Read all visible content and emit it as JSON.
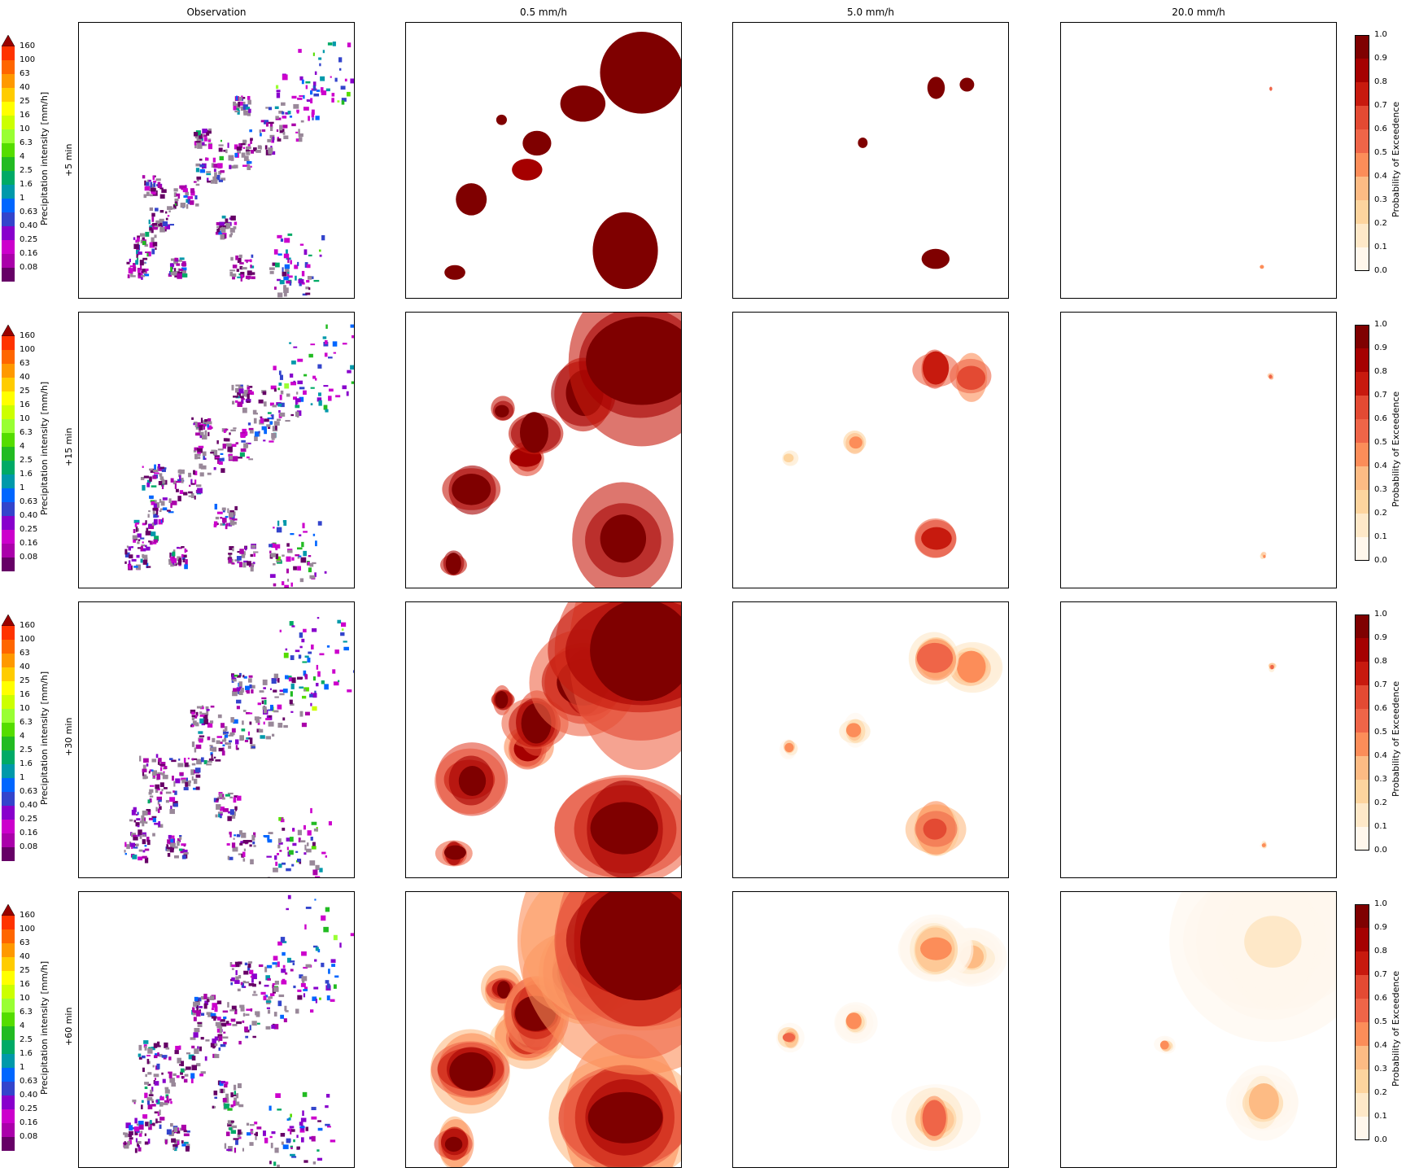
{
  "columns": [
    "Observation",
    "0.5 mm/h",
    "5.0 mm/h",
    "20.0 mm/h"
  ],
  "rows": [
    "+5 min",
    "+15 min",
    "+30 min",
    "+60 min"
  ],
  "precip_colorbar": {
    "label": "Precipitation intensity [mm/h]",
    "ticks": [
      "160",
      "100",
      "63",
      "40",
      "25",
      "16",
      "10",
      "6.3",
      "4",
      "2.5",
      "1.6",
      "1",
      "0.63",
      "0.40",
      "0.25",
      "0.16",
      "0.08"
    ],
    "colors": [
      "#cc0000",
      "#ff3300",
      "#ff6600",
      "#ff9900",
      "#ffcc00",
      "#ffff00",
      "#ccff00",
      "#99ff33",
      "#55dd00",
      "#22bb22",
      "#00aa66",
      "#0099aa",
      "#0066ff",
      "#3344cc",
      "#8800cc",
      "#cc00cc",
      "#aa00aa",
      "#660066",
      "#998899"
    ],
    "extend_color": "#990000"
  },
  "prob_colorbar": {
    "label": "Probability of Exceedence",
    "ticks": [
      "1.0",
      "0.9",
      "0.8",
      "0.7",
      "0.6",
      "0.5",
      "0.4",
      "0.3",
      "0.2",
      "0.1",
      "0.0"
    ],
    "colors": [
      "#7f0000",
      "#a50000",
      "#c71a0e",
      "#e34a33",
      "#ef6548",
      "#fc8d59",
      "#fdbb84",
      "#fdd49e",
      "#fee8c8",
      "#fff7ec"
    ]
  },
  "chart_data": [
    {
      "type": "heatmap",
      "description_scale": "precipitation intensity",
      "rows": [
        "+5 min",
        "+15 min",
        "+30 min",
        "+60 min"
      ],
      "columns": [
        "Observation",
        "0.5 mm/h",
        "5.0 mm/h",
        "20.0 mm/h"
      ],
      "precip_levels_mm_h": [
        0.08,
        0.16,
        0.25,
        0.4,
        0.63,
        1,
        1.6,
        2.5,
        4,
        6.3,
        10,
        16,
        25,
        40,
        63,
        100,
        160
      ],
      "probability_levels": [
        0.0,
        0.1,
        0.2,
        0.3,
        0.4,
        0.5,
        0.6,
        0.7,
        0.8,
        0.9,
        1.0
      ]
    }
  ]
}
